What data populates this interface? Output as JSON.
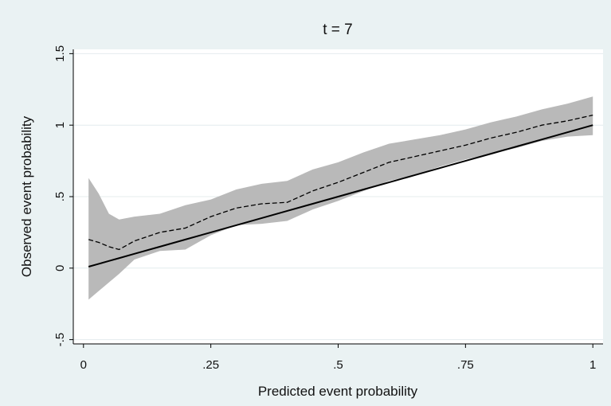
{
  "chart_data": {
    "type": "line",
    "title": "t = 7",
    "x_label": "Predicted event probability",
    "y_label": "Observed event probability",
    "x": [
      0.01,
      0.03,
      0.05,
      0.07,
      0.1,
      0.15,
      0.2,
      0.25,
      0.3,
      0.35,
      0.4,
      0.45,
      0.5,
      0.55,
      0.6,
      0.65,
      0.7,
      0.75,
      0.8,
      0.85,
      0.9,
      0.95,
      1.0
    ],
    "band": {
      "color": "#b9b9b9",
      "upper": [
        0.63,
        0.52,
        0.38,
        0.34,
        0.36,
        0.38,
        0.44,
        0.48,
        0.55,
        0.59,
        0.61,
        0.69,
        0.74,
        0.81,
        0.87,
        0.9,
        0.93,
        0.97,
        1.02,
        1.06,
        1.11,
        1.15,
        1.2
      ],
      "lower": [
        -0.22,
        -0.16,
        -0.1,
        -0.04,
        0.06,
        0.12,
        0.13,
        0.23,
        0.3,
        0.31,
        0.33,
        0.41,
        0.47,
        0.54,
        0.61,
        0.65,
        0.71,
        0.76,
        0.8,
        0.84,
        0.89,
        0.92,
        0.93
      ]
    },
    "series": [
      {
        "color": "#000000",
        "dashed": true,
        "values": [
          0.2,
          0.18,
          0.15,
          0.13,
          0.19,
          0.25,
          0.28,
          0.36,
          0.42,
          0.45,
          0.46,
          0.54,
          0.6,
          0.67,
          0.74,
          0.78,
          0.82,
          0.86,
          0.91,
          0.95,
          1.0,
          1.03,
          1.07
        ]
      },
      {
        "color": "#000000",
        "dashed": false,
        "values": [
          0.01,
          0.03,
          0.05,
          0.07,
          0.1,
          0.15,
          0.2,
          0.25,
          0.3,
          0.35,
          0.4,
          0.45,
          0.5,
          0.55,
          0.6,
          0.65,
          0.7,
          0.75,
          0.8,
          0.85,
          0.9,
          0.95,
          1.0
        ]
      }
    ],
    "xlim": [
      -0.02,
      1.02
    ],
    "xticks": [
      0,
      {
        "value": 0.25,
        "label": ".25"
      },
      {
        "value": 0.5,
        "label": ".5"
      },
      {
        "value": 0.75,
        "label": ".75"
      },
      1
    ],
    "ylim": [
      -0.53,
      1.53
    ],
    "yticks": [
      {
        "value": -0.5,
        "label": "-.5"
      },
      0,
      {
        "value": 0.5,
        "label": ".5"
      },
      1,
      1.5
    ],
    "grid": true
  }
}
